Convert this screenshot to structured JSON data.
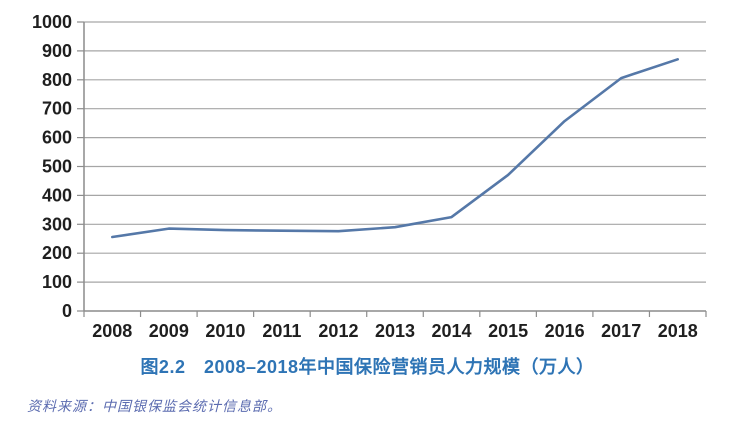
{
  "chart_data": {
    "type": "line",
    "title": "图2.2　2008–2018年中国保险营销员人力规模（万人）",
    "categories": [
      "2008",
      "2009",
      "2010",
      "2011",
      "2012",
      "2013",
      "2014",
      "2015",
      "2016",
      "2017",
      "2018"
    ],
    "values": [
      256,
      285,
      280,
      278,
      276,
      290,
      325,
      471,
      657,
      806,
      871
    ],
    "xlabel": "",
    "ylabel": "",
    "ylim": [
      0,
      1000
    ],
    "ytick_interval": 100,
    "ytick_labels": [
      "0",
      "100",
      "200",
      "300",
      "400",
      "500",
      "600",
      "700",
      "800",
      "900",
      "1000"
    ],
    "grid": true,
    "legend_position": "none"
  },
  "source": {
    "text": "资料来源：中国银保监会统计信息部。"
  },
  "colors": {
    "background": "#FFFFFF",
    "line": "#5578A8",
    "gridline": "#A6A6A6",
    "axis": "#8C8C8C",
    "tick_label": "#1F1F1F",
    "title": "#2E74B5",
    "source_text": "#5C6CB0"
  }
}
